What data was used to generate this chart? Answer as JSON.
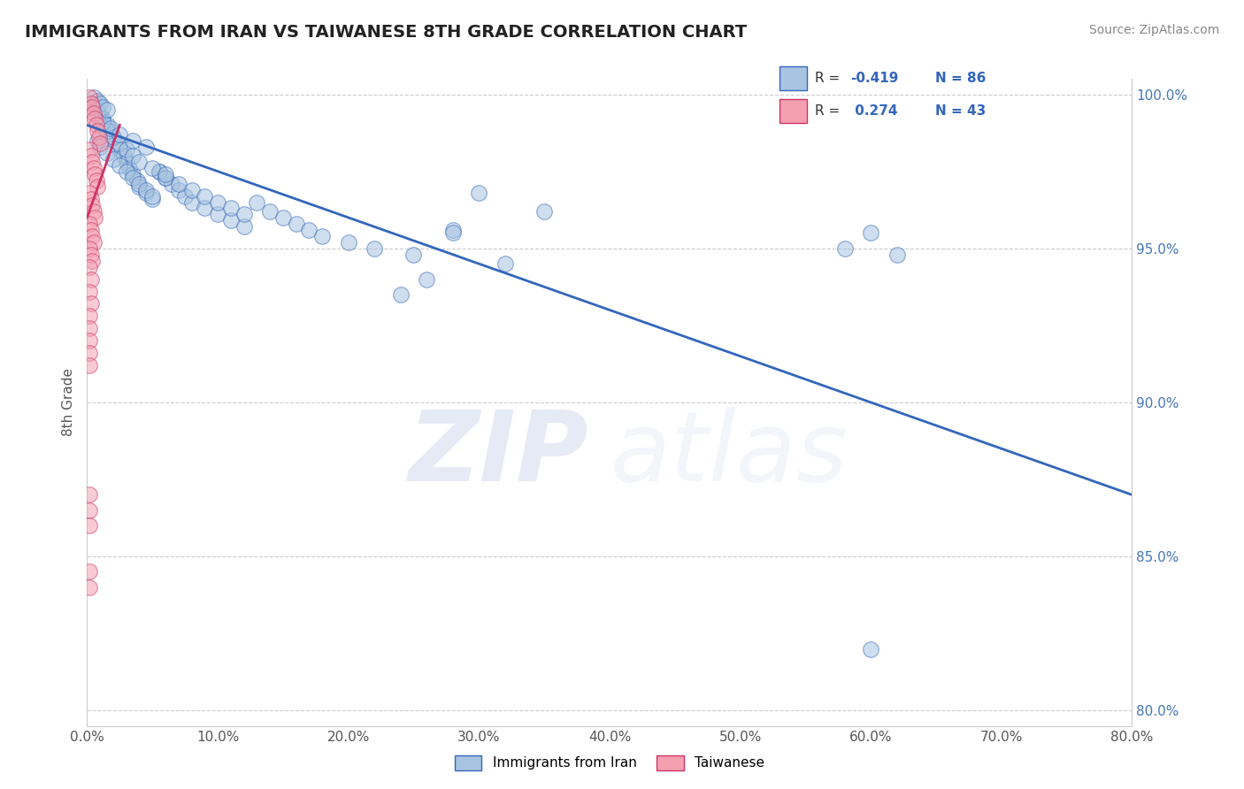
{
  "title": "IMMIGRANTS FROM IRAN VS TAIWANESE 8TH GRADE CORRELATION CHART",
  "source_text": "Source: ZipAtlas.com",
  "ylabel": "8th Grade",
  "legend_label1": "Immigrants from Iran",
  "legend_label2": "Taiwanese",
  "R1": -0.419,
  "N1": 86,
  "R2": 0.274,
  "N2": 43,
  "xlim": [
    0.0,
    0.8
  ],
  "ylim": [
    0.795,
    1.005
  ],
  "yticks": [
    0.8,
    0.85,
    0.9,
    0.95,
    1.0
  ],
  "xticks": [
    0.0,
    0.1,
    0.2,
    0.3,
    0.4,
    0.5,
    0.6,
    0.7,
    0.8
  ],
  "color_blue": "#A8C4E0",
  "color_pink": "#F4A0B0",
  "line_blue": "#3366BB",
  "line_pink": "#CC3366",
  "trend_blue_x0": 0.0,
  "trend_blue_y0": 0.99,
  "trend_blue_x1": 0.8,
  "trend_blue_y1": 0.87,
  "trend_pink_x0": 0.0,
  "trend_pink_y0": 0.96,
  "trend_pink_x1": 0.025,
  "trend_pink_y1": 0.99,
  "blue_scatter_x": [
    0.005,
    0.008,
    0.01,
    0.012,
    0.015,
    0.018,
    0.02,
    0.022,
    0.025,
    0.028,
    0.03,
    0.032,
    0.035,
    0.038,
    0.04,
    0.045,
    0.05,
    0.055,
    0.06,
    0.065,
    0.07,
    0.075,
    0.08,
    0.09,
    0.1,
    0.11,
    0.12,
    0.13,
    0.14,
    0.15,
    0.16,
    0.17,
    0.18,
    0.2,
    0.22,
    0.25,
    0.28,
    0.008,
    0.01,
    0.015,
    0.02,
    0.025,
    0.03,
    0.035,
    0.04,
    0.045,
    0.05,
    0.055,
    0.06,
    0.07,
    0.08,
    0.09,
    0.1,
    0.11,
    0.12,
    0.01,
    0.015,
    0.02,
    0.025,
    0.03,
    0.035,
    0.04,
    0.05,
    0.06,
    0.008,
    0.012,
    0.018,
    0.025,
    0.035,
    0.045,
    0.3,
    0.35,
    0.28,
    0.32,
    0.26,
    0.24,
    0.6,
    0.58,
    0.62,
    0.005,
    0.008,
    0.01,
    0.012,
    0.015
  ],
  "blue_scatter_y": [
    0.997,
    0.995,
    0.993,
    0.992,
    0.99,
    0.988,
    0.986,
    0.984,
    0.982,
    0.98,
    0.978,
    0.976,
    0.974,
    0.972,
    0.97,
    0.968,
    0.966,
    0.975,
    0.973,
    0.971,
    0.969,
    0.967,
    0.965,
    0.963,
    0.961,
    0.959,
    0.957,
    0.965,
    0.962,
    0.96,
    0.958,
    0.956,
    0.954,
    0.952,
    0.95,
    0.948,
    0.956,
    0.985,
    0.983,
    0.981,
    0.979,
    0.977,
    0.975,
    0.973,
    0.971,
    0.969,
    0.967,
    0.975,
    0.973,
    0.971,
    0.969,
    0.967,
    0.965,
    0.963,
    0.961,
    0.99,
    0.988,
    0.986,
    0.984,
    0.982,
    0.98,
    0.978,
    0.976,
    0.974,
    0.993,
    0.991,
    0.989,
    0.987,
    0.985,
    0.983,
    0.968,
    0.962,
    0.955,
    0.945,
    0.94,
    0.935,
    0.955,
    0.95,
    0.948,
    0.999,
    0.998,
    0.997,
    0.996,
    0.995
  ],
  "blue_outlier_x": [
    0.6
  ],
  "blue_outlier_y": [
    0.82
  ],
  "pink_scatter_x": [
    0.002,
    0.003,
    0.004,
    0.005,
    0.006,
    0.007,
    0.008,
    0.009,
    0.01,
    0.002,
    0.003,
    0.004,
    0.005,
    0.006,
    0.007,
    0.008,
    0.002,
    0.003,
    0.004,
    0.005,
    0.006,
    0.002,
    0.003,
    0.004,
    0.005,
    0.002,
    0.003,
    0.004,
    0.002,
    0.003,
    0.002,
    0.003,
    0.002,
    0.002,
    0.002,
    0.002,
    0.002,
    0.002,
    0.002,
    0.002,
    0.002,
    0.002
  ],
  "pink_scatter_y": [
    0.999,
    0.997,
    0.996,
    0.994,
    0.992,
    0.99,
    0.988,
    0.986,
    0.984,
    0.982,
    0.98,
    0.978,
    0.976,
    0.974,
    0.972,
    0.97,
    0.968,
    0.966,
    0.964,
    0.962,
    0.96,
    0.958,
    0.956,
    0.954,
    0.952,
    0.95,
    0.948,
    0.946,
    0.944,
    0.94,
    0.936,
    0.932,
    0.928,
    0.924,
    0.92,
    0.916,
    0.912,
    0.87,
    0.865,
    0.86,
    0.845,
    0.84
  ]
}
